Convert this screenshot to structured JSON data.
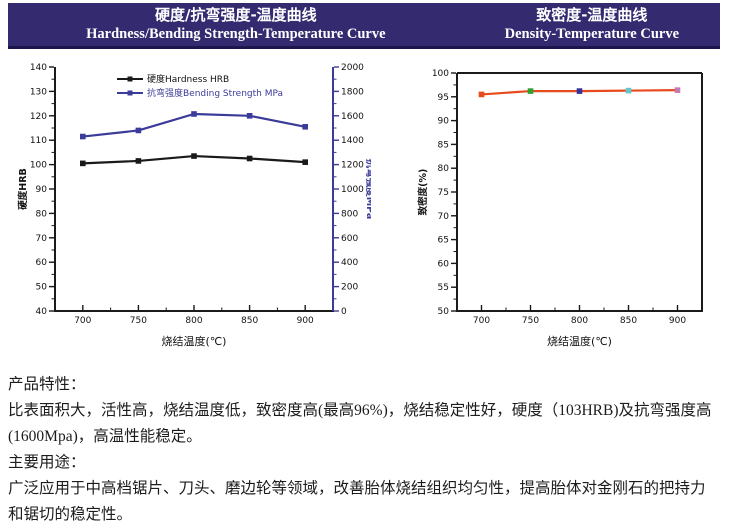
{
  "header": {
    "bg_color": "#332a70",
    "border_color": "#1b164e",
    "left": {
      "title_zh": "硬度/抗弯强度-温度曲线",
      "title_en": "Hardness/Bending Strength-Temperature Curve"
    },
    "right": {
      "title_zh": "致密度-温度曲线",
      "title_en": "Density-Temperature Curve"
    }
  },
  "chart_data": [
    {
      "type": "line",
      "title": "",
      "x": [
        700,
        750,
        800,
        850,
        900
      ],
      "xlim": [
        675,
        925
      ],
      "x_major": [
        700,
        750,
        800,
        850,
        900
      ],
      "x_minor": [
        725,
        775,
        825,
        875
      ],
      "xlabel": "烧结温度(℃)",
      "grid": false,
      "axes": {
        "left": {
          "label": "硬度HRB",
          "lim": [
            40,
            140
          ],
          "major_step": 10,
          "minor_step": 5,
          "color": "#1a1a1a"
        },
        "right": {
          "label": "抗弯强度MPa",
          "lim": [
            0,
            2000
          ],
          "major_step": 200,
          "minor_step": 100,
          "color": "#3b3b99"
        }
      },
      "series": [
        {
          "name": "硬度Hardness HRB",
          "axis": "left",
          "color": "#1a1a1a",
          "marker": "square",
          "values": [
            100.5,
            101.5,
            103.5,
            102.5,
            101
          ]
        },
        {
          "name": "抗弯强度Bending Strength MPa",
          "axis": "right",
          "color": "#3b3b99",
          "marker": "square",
          "values": [
            1430,
            1480,
            1615,
            1600,
            1510
          ]
        }
      ],
      "legend": {
        "position": "top-center-inside"
      },
      "box": false
    },
    {
      "type": "line",
      "title": "",
      "x": [
        700,
        750,
        800,
        850,
        900
      ],
      "xlim": [
        675,
        925
      ],
      "x_major": [
        700,
        750,
        800,
        850,
        900
      ],
      "x_minor": [
        725,
        775,
        825,
        875
      ],
      "xlabel": "烧结温度(℃)",
      "grid": false,
      "axes": {
        "left": {
          "label": "致密度(%)",
          "lim": [
            50,
            100
          ],
          "major_step": 5,
          "minor_step": 2.5,
          "color": "#1a1a1a"
        }
      },
      "series": [
        {
          "name": "致密度",
          "axis": "left",
          "color": "#e8491d",
          "marker": "square",
          "values": [
            95.5,
            96.2,
            96.2,
            96.3,
            96.4
          ],
          "marker_colors": [
            "#e8491d",
            "#2ea12e",
            "#333399",
            "#62c6ce",
            "#c678b4"
          ]
        }
      ],
      "legend": null,
      "box": true
    }
  ],
  "body_text": {
    "features_heading": "产品特性：",
    "features_text": "比表面积大，活性高，烧结温度低，致密度高(最高96%)，烧结稳定性好，硬度（103HRB)及抗弯强度高(1600Mpa)，高温性能稳定。",
    "uses_heading": "主要用途：",
    "uses_text": "广泛应用于中高档锯片、刀头、磨边轮等领域，改善胎体烧结组织均匀性，提高胎体对金刚石的把持力和锯切的稳定性。"
  }
}
